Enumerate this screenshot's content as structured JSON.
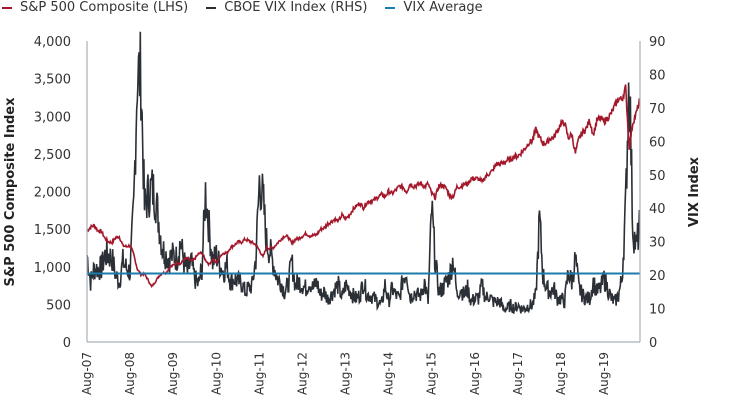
{
  "chart_data": {
    "type": "line",
    "title": "",
    "legend_position": "top-left",
    "legend": [
      "S&P 500 Composite (LHS)",
      "CBOE VIX Index (RHS)",
      "VIX Average"
    ],
    "ylabel_left": "S&P 500 Composite Index",
    "ylabel_right": "VIX Index",
    "ylim_left": [
      0,
      4000
    ],
    "ylim_right": [
      0,
      90
    ],
    "yticks_left": [
      "0",
      "500",
      "1,000",
      "1,500",
      "2,000",
      "2,500",
      "3,000",
      "3,500",
      "4,000"
    ],
    "yticks_left_values": [
      0,
      500,
      1000,
      1500,
      2000,
      2500,
      3000,
      3500,
      4000
    ],
    "yticks_right": [
      "0",
      "10",
      "20",
      "30",
      "40",
      "50",
      "60",
      "70",
      "80",
      "90"
    ],
    "yticks_right_values": [
      0,
      10,
      20,
      30,
      40,
      50,
      60,
      70,
      80,
      90
    ],
    "xticks": [
      "Aug-07",
      "Aug-08",
      "Aug-09",
      "Aug-10",
      "Aug-11",
      "Aug-12",
      "Aug-13",
      "Aug-14",
      "Aug-15",
      "Aug-16",
      "Aug-17",
      "Aug-18",
      "Aug-19"
    ],
    "x_start": "Aug-2007",
    "x_frequency": "monthly",
    "colors": {
      "sp500": "#a3182b",
      "vix": "#2b2f36",
      "vix_avg": "#1c7bab",
      "axis": "#a7b0ba"
    },
    "series": [
      {
        "name": "S&P 500 Composite (LHS)",
        "axis": "left",
        "values": [
          1474,
          1527,
          1549,
          1481,
          1468,
          1378,
          1330,
          1323,
          1386,
          1400,
          1280,
          1267,
          1283,
          1166,
          969,
          896,
          903,
          826,
          735,
          798,
          873,
          919,
          919,
          987,
          1021,
          1057,
          1036,
          1096,
          1115,
          1074,
          1104,
          1169,
          1187,
          1089,
          1031,
          1102,
          1049,
          1141,
          1183,
          1181,
          1258,
          1286,
          1327,
          1326,
          1364,
          1345,
          1321,
          1292,
          1219,
          1131,
          1253,
          1247,
          1258,
          1312,
          1366,
          1408,
          1398,
          1310,
          1362,
          1379,
          1407,
          1441,
          1412,
          1416,
          1426,
          1498,
          1515,
          1569,
          1598,
          1631,
          1606,
          1686,
          1633,
          1682,
          1757,
          1806,
          1848,
          1783,
          1859,
          1872,
          1884,
          1924,
          1960,
          1931,
          2003,
          1972,
          2018,
          2068,
          2059,
          1995,
          2105,
          2068,
          2086,
          2107,
          2063,
          2104,
          1972,
          1920,
          2079,
          2080,
          2044,
          1940,
          1932,
          2060,
          2065,
          2097,
          2099,
          2174,
          2171,
          2168,
          2126,
          2199,
          2239,
          2279,
          2364,
          2363,
          2384,
          2412,
          2423,
          2470,
          2472,
          2519,
          2575,
          2648,
          2674,
          2824,
          2714,
          2641,
          2648,
          2705,
          2718,
          2816,
          2902,
          2914,
          2712,
          2760,
          2507,
          2704,
          2784,
          2834,
          2946,
          2752,
          2942,
          2980,
          2926,
          2977,
          3038,
          3141,
          3231,
          3226,
          3380,
          2585,
          2912,
          3044,
          3230
        ]
      },
      {
        "name": "CBOE VIX Index (RHS)",
        "axis": "right",
        "values": [
          26,
          18,
          22,
          22,
          22,
          26,
          26,
          25,
          20,
          18,
          24,
          22,
          21,
          40,
          80,
          80,
          40,
          44,
          46,
          44,
          36,
          28,
          26,
          25,
          26,
          25,
          30,
          24,
          21,
          24,
          19,
          17,
          22,
          45,
          34,
          24,
          26,
          23,
          21,
          23,
          18,
          19,
          18,
          18,
          15,
          16,
          17,
          25,
          48,
          43,
          30,
          27,
          23,
          19,
          18,
          15,
          17,
          24,
          17,
          18,
          17,
          16,
          18,
          16,
          18,
          14,
          15,
          13,
          14,
          16,
          17,
          13,
          17,
          16,
          14,
          13,
          14,
          18,
          14,
          14,
          13,
          12,
          11,
          17,
          12,
          16,
          14,
          13,
          19,
          21,
          13,
          15,
          14,
          14,
          18,
          12,
          40,
          24,
          15,
          16,
          18,
          20,
          25,
          14,
          16,
          14,
          16,
          12,
          13,
          13,
          17,
          13,
          14,
          12,
          12,
          12,
          10,
          10,
          11,
          10,
          11,
          10,
          10,
          11,
          11,
          14,
          37,
          20,
          16,
          15,
          16,
          13,
          13,
          12,
          21,
          18,
          25,
          16,
          14,
          13,
          13,
          18,
          15,
          16,
          19,
          16,
          13,
          12,
          14,
          19,
          40,
          82,
          34,
          28,
          36
        ]
      },
      {
        "name": "VIX Average",
        "axis": "right",
        "constant": 20.5
      }
    ]
  }
}
